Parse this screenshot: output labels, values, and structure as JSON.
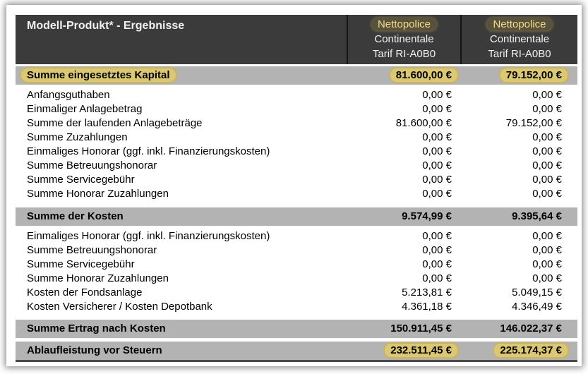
{
  "title": "Modell-Produkt* - Ergebnisse",
  "columns": [
    {
      "lines": [
        "Nettopolice",
        "Continentale",
        "Tarif RI-A0B0"
      ],
      "highlighted_line": "Nettopolice"
    },
    {
      "lines": [
        "Nettopolice",
        "Continentale",
        "Tarif RI-A0B0"
      ],
      "highlighted_line": "Nettopolice"
    }
  ],
  "blocks": [
    {
      "type": "summary",
      "label": "Summe eingesetztes Kapital",
      "v1": "81.600,00 €",
      "v2": "79.152,00 €",
      "highlight_label": true,
      "highlight_values": true
    },
    {
      "type": "rows",
      "rows": [
        {
          "label": "Anfangsguthaben",
          "v1": "0,00 €",
          "v2": "0,00 €"
        },
        {
          "label": "Einmaliger Anlagebetrag",
          "v1": "0,00 €",
          "v2": "0,00 €"
        },
        {
          "label": "Summe der laufenden Anlagebeträge",
          "v1": "81.600,00 €",
          "v2": "79.152,00 €"
        },
        {
          "label": "Summe Zuzahlungen",
          "v1": "0,00 €",
          "v2": "0,00 €"
        },
        {
          "label": "Einmaliges Honorar (ggf. inkl. Finanzierungskosten)",
          "v1": "0,00 €",
          "v2": "0,00 €"
        },
        {
          "label": "Summe Betreuungshonorar",
          "v1": "0,00 €",
          "v2": "0,00 €"
        },
        {
          "label": "Summe Servicegebühr",
          "v1": "0,00 €",
          "v2": "0,00 €"
        },
        {
          "label": "Summe Honorar Zuzahlungen",
          "v1": "0,00 €",
          "v2": "0,00 €"
        }
      ]
    },
    {
      "type": "summary",
      "label": "Summe der Kosten",
      "v1": "9.574,99 €",
      "v2": "9.395,64 €",
      "highlight_label": false,
      "highlight_values": false
    },
    {
      "type": "rows",
      "rows": [
        {
          "label": "Einmaliges Honorar (ggf. inkl. Finanzierungskosten)",
          "v1": "0,00 €",
          "v2": "0,00 €"
        },
        {
          "label": "Summe Betreuungshonorar",
          "v1": "0,00 €",
          "v2": "0,00 €"
        },
        {
          "label": "Summe Servicegebühr",
          "v1": "0,00 €",
          "v2": "0,00 €"
        },
        {
          "label": "Summe Honorar Zuzahlungen",
          "v1": "0,00 €",
          "v2": "0,00 €"
        },
        {
          "label": "Kosten der Fondsanlage",
          "v1": "5.213,81 €",
          "v2": "5.049,15 €"
        },
        {
          "label": "Kosten Versicherer / Kosten Depotbank",
          "v1": "4.361,18 €",
          "v2": "4.346,49 €"
        }
      ]
    },
    {
      "type": "summary",
      "label": "Summe Ertrag nach Kosten",
      "v1": "150.911,45 €",
      "v2": "146.022,37 €",
      "highlight_label": false,
      "highlight_values": false
    },
    {
      "type": "summary",
      "label": "Ablaufleistung vor Steuern",
      "v1": "232.511,45 €",
      "v2": "225.174,37 €",
      "highlight_label": false,
      "highlight_values": true
    }
  ],
  "colors": {
    "header_bg": "#3b3b3b",
    "header_text": "#f1f1f1",
    "summary_row_bg": "#b3b3b3",
    "highlight_yellow": "#dcc873",
    "highlight_glow": "#c9b45e",
    "header_highlight_text": "#f2df85",
    "body_text": "#000000",
    "bottom_border": "#4a4a4a",
    "frame_shadow": "#888888"
  }
}
